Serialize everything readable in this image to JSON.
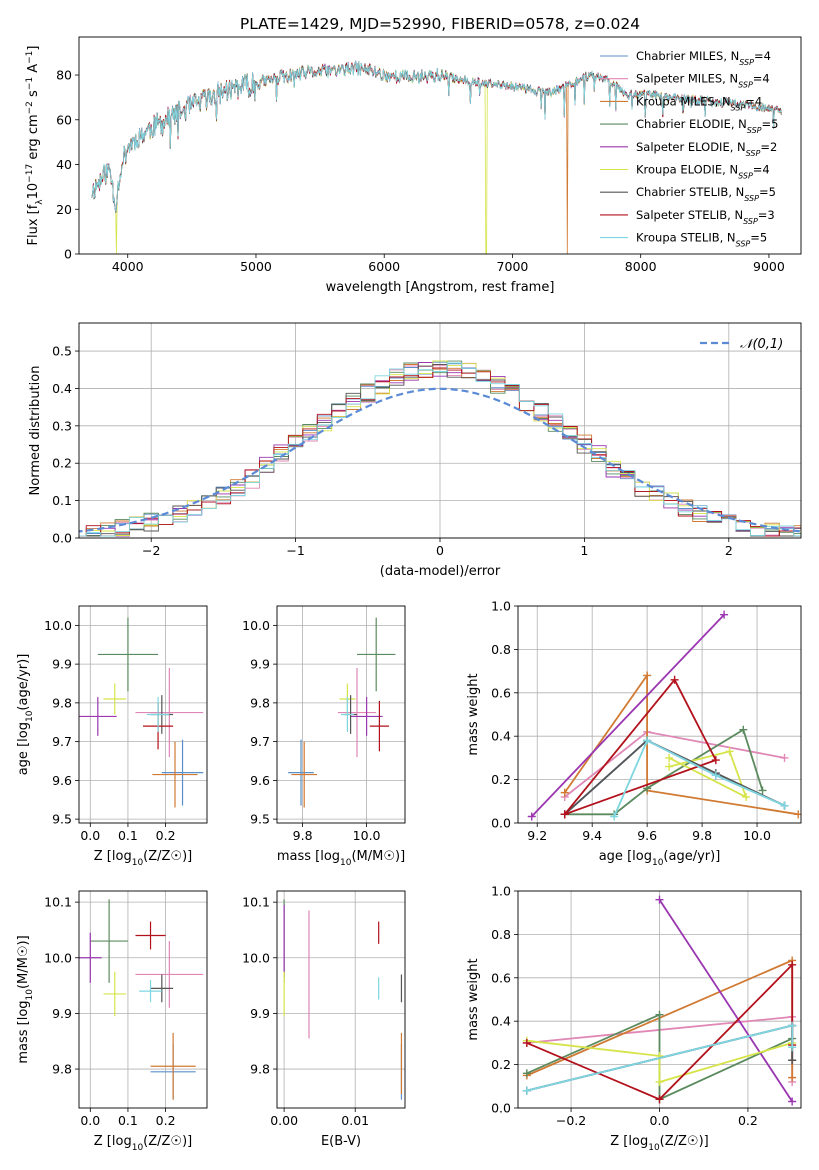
{
  "figure_title": "PLATE=1429, MJD=52990, FIBERID=0578, z=0.024",
  "colors": {
    "Chabrier MILES": "#5b8fc9",
    "Salpeter MILES": "#e087b6",
    "Kroupa MILES": "#d07a33",
    "Chabrier ELODIE": "#5b8a5e",
    "Salpeter ELODIE": "#9a36b0",
    "Kroupa ELODIE": "#d6e44a",
    "Chabrier STELIB": "#555555",
    "Salpeter STELIB": "#b3111c",
    "Kroupa STELIB": "#7dd6e0",
    "gauss": "#5b8bd6"
  },
  "chart_data": [
    {
      "id": "spectrum",
      "type": "line",
      "title": "PLATE=1429, MJD=52990, FIBERID=0578, z=0.024",
      "xlabel": "wavelength [Angstrom, rest frame]",
      "ylabel": "Flux [f_λ10^-17 erg cm^-2 s^-1 A^-1]",
      "xlim": [
        3620,
        9250
      ],
      "ylim": [
        0,
        97
      ],
      "xticks": [
        4000,
        5000,
        6000,
        7000,
        8000,
        9000
      ],
      "yticks": [
        0,
        20,
        40,
        60,
        80
      ],
      "legend_position": "top-right",
      "legend": [
        "Chabrier MILES, N_SSP=4",
        "Salpeter MILES, N_SSP=4",
        "Kroupa MILES, N_SSP=4",
        "Chabrier ELODIE, N_SSP=5",
        "Salpeter ELODIE, N_SSP=2",
        "Kroupa ELODIE, N_SSP=4",
        "Chabrier STELIB, N_SSP=5",
        "Salpeter STELIB, N_SSP=3",
        "Kroupa STELIB, N_SSP=5"
      ],
      "continuum": {
        "x": [
          3720,
          3800,
          3860,
          3905,
          3950,
          4000,
          4100,
          4200,
          4300,
          4400,
          4500,
          4600,
          4800,
          5000,
          5200,
          5400,
          5600,
          5800,
          5900,
          6000,
          6200,
          6400,
          6600,
          6800,
          7000,
          7200,
          7300,
          7400,
          7500,
          7600,
          7700,
          7800,
          7900,
          8000,
          8200,
          8400,
          8600,
          8800,
          9000,
          9100
        ],
        "y": [
          28,
          34,
          38,
          22,
          40,
          48,
          53,
          57,
          60,
          63,
          66,
          69,
          74,
          76,
          79,
          81,
          82,
          83,
          82,
          80,
          79,
          80,
          78,
          76,
          75,
          73,
          72,
          75,
          77,
          80,
          79,
          76,
          71,
          72,
          70,
          69,
          68,
          67,
          65,
          64
        ]
      },
      "series_dropouts": [
        {
          "series": "Kroupa ELODIE",
          "x": 3910
        },
        {
          "series": "Kroupa ELODIE",
          "x": 6795
        },
        {
          "series": "Kroupa MILES",
          "x": 7430
        }
      ]
    },
    {
      "id": "residuals",
      "type": "histogram",
      "xlabel": "(data-model)/error",
      "ylabel": "Normed distribution",
      "xlim": [
        -2.5,
        2.5
      ],
      "ylim": [
        0,
        0.575
      ],
      "xticks": [
        -2,
        -1,
        0,
        1,
        2
      ],
      "yticks": [
        0.0,
        0.1,
        0.2,
        0.3,
        0.4,
        0.5
      ],
      "bin_width": 0.1,
      "grid": true,
      "legend_position": "top-right",
      "legend": [
        "𝒩(0,1)"
      ],
      "reference_curve": {
        "name": "𝒩(0,1)",
        "mean": 0,
        "sigma": 1,
        "style": "dashed"
      }
    },
    {
      "id": "age_vs_Z",
      "type": "errorbar",
      "xlabel": "Z [log10(Z/Z☉)]",
      "ylabel": "age [log10(age/yr)]",
      "xlim": [
        -0.03,
        0.31
      ],
      "ylim": [
        9.49,
        10.05
      ],
      "xticks": [
        0.0,
        0.1,
        0.2
      ],
      "yticks": [
        9.5,
        9.6,
        9.7,
        9.8,
        9.9,
        10.0
      ],
      "grid": true,
      "points": [
        {
          "series": "Chabrier MILES",
          "x": 0.245,
          "y": 9.62,
          "xerr": 0.055,
          "yerr": 0.085
        },
        {
          "series": "Salpeter MILES",
          "x": 0.21,
          "y": 9.775,
          "xerr": 0.09,
          "yerr": 0.115
        },
        {
          "series": "Kroupa MILES",
          "x": 0.225,
          "y": 9.615,
          "xerr": 0.06,
          "yerr": 0.085
        },
        {
          "series": "Chabrier ELODIE",
          "x": 0.1,
          "y": 9.925,
          "xerr": 0.08,
          "yerr": 0.095
        },
        {
          "series": "Salpeter ELODIE",
          "x": 0.02,
          "y": 9.765,
          "xerr": 0.05,
          "yerr": 0.05
        },
        {
          "series": "Kroupa ELODIE",
          "x": 0.065,
          "y": 9.81,
          "xerr": 0.03,
          "yerr": 0.04
        },
        {
          "series": "Chabrier STELIB",
          "x": 0.19,
          "y": 9.77,
          "xerr": 0.03,
          "yerr": 0.05
        },
        {
          "series": "Salpeter STELIB",
          "x": 0.18,
          "y": 9.74,
          "xerr": 0.04,
          "yerr": 0.06
        },
        {
          "series": "Kroupa STELIB",
          "x": 0.18,
          "y": 9.77,
          "xerr": 0.03,
          "yerr": 0.045
        }
      ]
    },
    {
      "id": "age_vs_mass",
      "type": "errorbar",
      "xlabel": "mass [log10(M/M☉)]",
      "ylabel": "",
      "xlim": [
        9.72,
        10.12
      ],
      "ylim": [
        9.49,
        10.05
      ],
      "xticks": [
        9.8,
        10.0
      ],
      "yticks": [
        9.5,
        9.6,
        9.7,
        9.8,
        9.9,
        10.0
      ],
      "grid": true,
      "points": [
        {
          "series": "Chabrier MILES",
          "x": 9.795,
          "y": 9.62,
          "xerr": 0.04,
          "yerr": 0.085
        },
        {
          "series": "Salpeter MILES",
          "x": 9.97,
          "y": 9.775,
          "xerr": 0.06,
          "yerr": 0.115
        },
        {
          "series": "Kroupa MILES",
          "x": 9.805,
          "y": 9.615,
          "xerr": 0.04,
          "yerr": 0.085
        },
        {
          "series": "Chabrier ELODIE",
          "x": 10.03,
          "y": 9.925,
          "xerr": 0.06,
          "yerr": 0.095
        },
        {
          "series": "Salpeter ELODIE",
          "x": 10.0,
          "y": 9.765,
          "xerr": 0.05,
          "yerr": 0.05
        },
        {
          "series": "Kroupa ELODIE",
          "x": 9.94,
          "y": 9.81,
          "xerr": 0.025,
          "yerr": 0.04
        },
        {
          "series": "Chabrier STELIB",
          "x": 9.95,
          "y": 9.77,
          "xerr": 0.02,
          "yerr": 0.05
        },
        {
          "series": "Salpeter STELIB",
          "x": 10.04,
          "y": 9.74,
          "xerr": 0.03,
          "yerr": 0.065
        },
        {
          "series": "Kroupa STELIB",
          "x": 9.94,
          "y": 9.77,
          "xerr": 0.02,
          "yerr": 0.045
        }
      ]
    },
    {
      "id": "weight_vs_age",
      "type": "line",
      "xlabel": "age [log10(age/yr)]",
      "ylabel": "mass weight",
      "xlim": [
        9.13,
        10.16
      ],
      "ylim": [
        0,
        1
      ],
      "xticks": [
        9.2,
        9.4,
        9.6,
        9.8,
        10.0
      ],
      "yticks": [
        0.0,
        0.2,
        0.4,
        0.6,
        0.8,
        1.0
      ],
      "grid": true,
      "series": [
        {
          "name": "Chabrier MILES",
          "x": [
            9.3,
            9.6,
            9.85,
            10.1
          ],
          "y": [
            0.04,
            0.38,
            0.22,
            0.08
          ]
        },
        {
          "name": "Salpeter MILES",
          "x": [
            9.3,
            9.6,
            10.1
          ],
          "y": [
            0.12,
            0.42,
            0.3
          ]
        },
        {
          "name": "Kroupa MILES",
          "x": [
            9.3,
            9.6,
            9.6,
            10.15
          ],
          "y": [
            0.14,
            0.68,
            0.15,
            0.04
          ]
        },
        {
          "name": "Chabrier ELODIE",
          "x": [
            9.3,
            9.48,
            9.6,
            9.95,
            10.02
          ],
          "y": [
            0.04,
            0.04,
            0.16,
            0.43,
            0.15
          ]
        },
        {
          "name": "Salpeter ELODIE",
          "x": [
            9.18,
            9.88
          ],
          "y": [
            0.03,
            0.96
          ]
        },
        {
          "name": "Kroupa ELODIE",
          "x": [
            9.68,
            9.9,
            9.96,
            9.68
          ],
          "y": [
            0.26,
            0.33,
            0.12,
            0.3
          ]
        },
        {
          "name": "Chabrier STELIB",
          "x": [
            9.3,
            9.6,
            9.85,
            10.1
          ],
          "y": [
            0.04,
            0.38,
            0.23,
            0.08
          ]
        },
        {
          "name": "Salpeter STELIB",
          "x": [
            9.3,
            9.7,
            9.85,
            9.3
          ],
          "y": [
            0.04,
            0.66,
            0.29,
            0.04
          ]
        },
        {
          "name": "Kroupa STELIB",
          "x": [
            9.48,
            9.6,
            9.85,
            10.1
          ],
          "y": [
            0.03,
            0.38,
            0.22,
            0.08
          ]
        }
      ]
    },
    {
      "id": "mass_vs_Z",
      "type": "errorbar",
      "xlabel": "Z [log10(Z/Z☉)]",
      "ylabel": "mass [log10(M/M☉)]",
      "xlim": [
        -0.03,
        0.31
      ],
      "ylim": [
        9.73,
        10.12
      ],
      "xticks": [
        0.0,
        0.1,
        0.2
      ],
      "yticks": [
        9.8,
        9.9,
        10.0,
        10.1
      ],
      "grid": true,
      "points": [
        {
          "series": "Chabrier MILES",
          "x": 0.22,
          "y": 9.795,
          "xerr": 0.06,
          "yerr": 0.05
        },
        {
          "series": "Salpeter MILES",
          "x": 0.21,
          "y": 9.97,
          "xerr": 0.09,
          "yerr": 0.06
        },
        {
          "series": "Kroupa MILES",
          "x": 0.22,
          "y": 9.805,
          "xerr": 0.06,
          "yerr": 0.06
        },
        {
          "series": "Chabrier ELODIE",
          "x": 0.05,
          "y": 10.03,
          "xerr": 0.05,
          "yerr": 0.075
        },
        {
          "series": "Salpeter ELODIE",
          "x": 0.0,
          "y": 10.0,
          "xerr": 0.03,
          "yerr": 0.045
        },
        {
          "series": "Kroupa ELODIE",
          "x": 0.065,
          "y": 9.935,
          "xerr": 0.03,
          "yerr": 0.04
        },
        {
          "series": "Chabrier STELIB",
          "x": 0.19,
          "y": 9.945,
          "xerr": 0.03,
          "yerr": 0.025
        },
        {
          "series": "Salpeter STELIB",
          "x": 0.16,
          "y": 10.04,
          "xerr": 0.04,
          "yerr": 0.025
        },
        {
          "series": "Kroupa STELIB",
          "x": 0.16,
          "y": 9.94,
          "xerr": 0.03,
          "yerr": 0.02
        }
      ]
    },
    {
      "id": "mass_vs_ebv",
      "type": "errorbar",
      "xlabel": "E(B-V)",
      "ylabel": "",
      "xlim": [
        -0.001,
        0.017
      ],
      "ylim": [
        9.73,
        10.12
      ],
      "xticks": [
        0.0,
        0.01
      ],
      "yticks": [
        9.8,
        9.9,
        10.0,
        10.1
      ],
      "grid": true,
      "points": [
        {
          "series": "Chabrier MILES",
          "x": 0.0165,
          "y": 9.795,
          "xerr": 0,
          "yerr": 0.05
        },
        {
          "series": "Salpeter MILES",
          "x": 0.0035,
          "y": 9.97,
          "xerr": 0,
          "yerr": 0.115
        },
        {
          "series": "Kroupa MILES",
          "x": 0.0165,
          "y": 9.81,
          "xerr": 0,
          "yerr": 0.055
        },
        {
          "series": "Chabrier ELODIE",
          "x": 0.0,
          "y": 10.03,
          "xerr": 0,
          "yerr": 0.075
        },
        {
          "series": "Salpeter ELODIE",
          "x": 0.0,
          "y": 10.03,
          "xerr": 0,
          "yerr": 0.065
        },
        {
          "series": "Kroupa ELODIE",
          "x": 0.0,
          "y": 9.935,
          "xerr": 0,
          "yerr": 0.04
        },
        {
          "series": "Chabrier STELIB",
          "x": 0.0165,
          "y": 9.945,
          "xerr": 0,
          "yerr": 0.025
        },
        {
          "series": "Salpeter STELIB",
          "x": 0.0133,
          "y": 10.045,
          "xerr": 0,
          "yerr": 0.02
        },
        {
          "series": "Kroupa STELIB",
          "x": 0.0133,
          "y": 9.945,
          "xerr": 0,
          "yerr": 0.02
        }
      ]
    },
    {
      "id": "weight_vs_Z",
      "type": "line",
      "xlabel": "Z [log10(Z/Z☉)]",
      "ylabel": "mass weight",
      "xlim": [
        -0.32,
        0.32
      ],
      "ylim": [
        0,
        1
      ],
      "xticks": [
        -0.2,
        0.0,
        0.2
      ],
      "yticks": [
        0.0,
        0.2,
        0.4,
        0.6,
        0.8,
        1.0
      ],
      "grid": true,
      "series": [
        {
          "name": "Chabrier MILES",
          "x": [
            -0.3,
            0.3,
            0.3
          ],
          "y": [
            0.08,
            0.38,
            0.22
          ]
        },
        {
          "name": "Salpeter MILES",
          "x": [
            -0.3,
            0.3,
            0.3
          ],
          "y": [
            0.3,
            0.42,
            0.12
          ]
        },
        {
          "name": "Kroupa MILES",
          "x": [
            -0.3,
            0.3,
            0.3
          ],
          "y": [
            0.15,
            0.68,
            0.14
          ]
        },
        {
          "name": "Chabrier ELODIE",
          "x": [
            -0.3,
            0.0,
            0.0,
            0.3
          ],
          "y": [
            0.16,
            0.43,
            0.04,
            0.32
          ]
        },
        {
          "name": "Salpeter ELODIE",
          "x": [
            0.0,
            0.3
          ],
          "y": [
            0.96,
            0.03
          ]
        },
        {
          "name": "Kroupa ELODIE",
          "x": [
            -0.3,
            0.0,
            0.0,
            0.3
          ],
          "y": [
            0.31,
            0.24,
            0.12,
            0.3
          ]
        },
        {
          "name": "Chabrier STELIB",
          "x": [
            -0.3,
            0.3,
            0.3
          ],
          "y": [
            0.08,
            0.38,
            0.22
          ]
        },
        {
          "name": "Salpeter STELIB",
          "x": [
            -0.3,
            0.0,
            0.3,
            0.3
          ],
          "y": [
            0.3,
            0.04,
            0.66,
            0.29
          ]
        },
        {
          "name": "Kroupa STELIB",
          "x": [
            -0.3,
            0.3,
            0.3
          ],
          "y": [
            0.08,
            0.38,
            0.28
          ]
        }
      ]
    }
  ]
}
